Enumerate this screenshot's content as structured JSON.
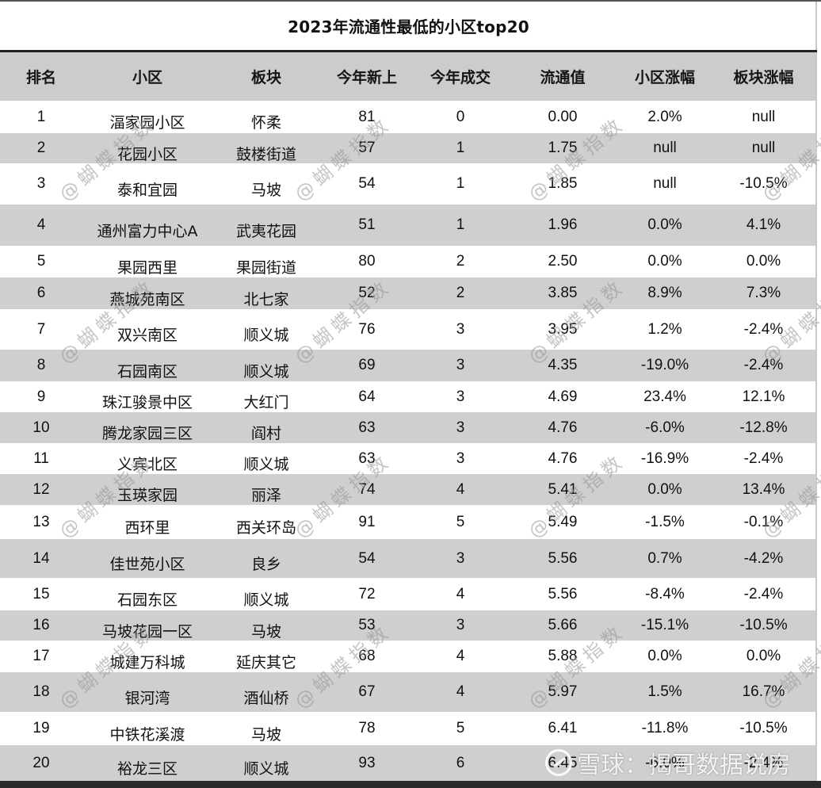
{
  "title": "2023年流通性最低的小区top20",
  "colors": {
    "header_bg": "#cccccf",
    "row_gray": "#cfcfd1",
    "row_white": "#ffffff",
    "rule_dark": "#222222"
  },
  "table": {
    "headers": [
      "排名",
      "小区",
      "板块",
      "今年新上",
      "今年成交",
      "流通值",
      "小区涨幅",
      "板块涨幅"
    ],
    "rows": [
      [
        "1",
        "湢家园小区",
        "怀柔",
        "81",
        "0",
        "0.00",
        "2.0%",
        "null"
      ],
      [
        "2",
        "花园小区",
        "鼓楼街道",
        "57",
        "1",
        "1.75",
        "null",
        "null"
      ],
      [
        "3",
        "泰和宜园",
        "马坡",
        "54",
        "1",
        "1.85",
        "null",
        "-10.5%"
      ],
      [
        "4",
        "通州富力中心A",
        "武夷花园",
        "51",
        "1",
        "1.96",
        "0.0%",
        "4.1%"
      ],
      [
        "5",
        "果园西里",
        "果园街道",
        "80",
        "2",
        "2.50",
        "0.0%",
        "0.0%"
      ],
      [
        "6",
        "燕城苑南区",
        "北七家",
        "52",
        "2",
        "3.85",
        "8.9%",
        "7.3%"
      ],
      [
        "7",
        "双兴南区",
        "顺义城",
        "76",
        "3",
        "3.95",
        "1.2%",
        "-2.4%"
      ],
      [
        "8",
        "石园南区",
        "顺义城",
        "69",
        "3",
        "4.35",
        "-19.0%",
        "-2.4%"
      ],
      [
        "9",
        "珠江骏景中区",
        "大红门",
        "64",
        "3",
        "4.69",
        "23.4%",
        "12.1%"
      ],
      [
        "10",
        "腾龙家园三区",
        "阎村",
        "63",
        "3",
        "4.76",
        "-6.0%",
        "-12.8%"
      ],
      [
        "11",
        "义宾北区",
        "顺义城",
        "63",
        "3",
        "4.76",
        "-16.9%",
        "-2.4%"
      ],
      [
        "12",
        "玉瑛家园",
        "丽泽",
        "74",
        "4",
        "5.41",
        "0.0%",
        "13.4%"
      ],
      [
        "13",
        "西环里",
        "西关环岛",
        "91",
        "5",
        "5.49",
        "-1.5%",
        "-0.1%"
      ],
      [
        "14",
        "佳世苑小区",
        "良乡",
        "54",
        "3",
        "5.56",
        "0.7%",
        "-4.2%"
      ],
      [
        "15",
        "石园东区",
        "顺义城",
        "72",
        "4",
        "5.56",
        "-8.4%",
        "-2.4%"
      ],
      [
        "16",
        "马坡花园一区",
        "马坡",
        "53",
        "3",
        "5.66",
        "-15.1%",
        "-10.5%"
      ],
      [
        "17",
        "城建万科城",
        "延庆其它",
        "68",
        "4",
        "5.88",
        "0.0%",
        "0.0%"
      ],
      [
        "18",
        "银河湾",
        "酒仙桥",
        "67",
        "4",
        "5.97",
        "1.5%",
        "16.7%"
      ],
      [
        "19",
        "中铁花溪渡",
        "马坡",
        "78",
        "5",
        "6.41",
        "-11.8%",
        "-10.5%"
      ],
      [
        "20",
        "裕龙三区",
        "顺义城",
        "93",
        "6",
        "6.45",
        "-6.0%",
        "-2.4%"
      ]
    ]
  },
  "watermarks": {
    "diagonal": "@蝴蝶指数",
    "footer": "雪球：揭哥数据说房",
    "footer_logo": "xueqiu-logo-icon"
  }
}
